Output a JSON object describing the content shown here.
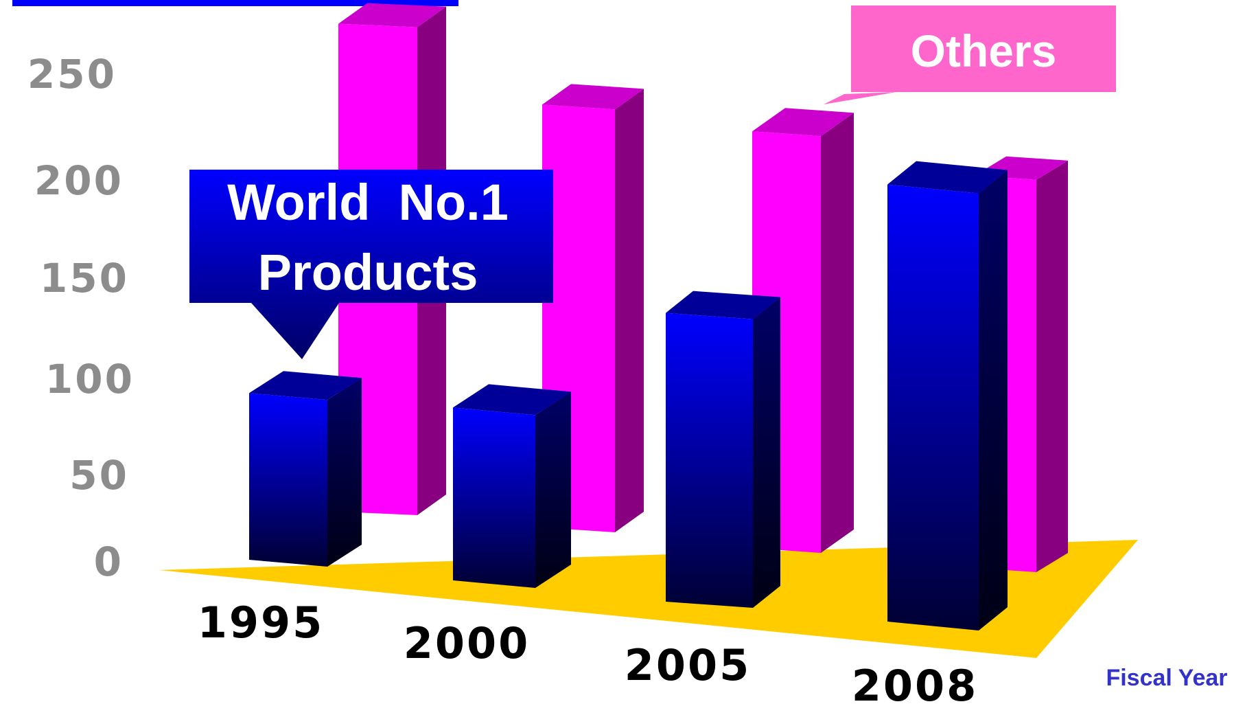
{
  "chart_data": {
    "type": "bar",
    "title": "",
    "xlabel": "Fiscal Year",
    "ylabel": "",
    "ylim": [
      0,
      250
    ],
    "yticks": [
      "0",
      "50",
      "100",
      "150",
      "200",
      "250"
    ],
    "categories": [
      "1995",
      "2000",
      "2005",
      "2008"
    ],
    "series": [
      {
        "name": "World No.1 Products",
        "values": [
          82,
          85,
          142,
          215
        ]
      },
      {
        "name": "Others",
        "values": [
          240,
          208,
          205,
          193
        ]
      }
    ],
    "annotations": [
      {
        "target": "World No.1 Products",
        "lines": [
          "World  No.1",
          "Products"
        ]
      },
      {
        "target": "Others",
        "lines": [
          "Others"
        ]
      }
    ],
    "colors": {
      "series1_front_top": "#0000ff",
      "series1_front_bottom": "#000033",
      "series1_side": "#00004d",
      "series2_front": "#ff00ff",
      "series2_side": "#880080",
      "floor": "#ffcc00",
      "callout1": "#0000ff",
      "callout2": "#ff66cc",
      "ticks": "#8c8c8c",
      "axis_title": "#3333cc"
    },
    "grid": false,
    "legend": "callouts"
  }
}
